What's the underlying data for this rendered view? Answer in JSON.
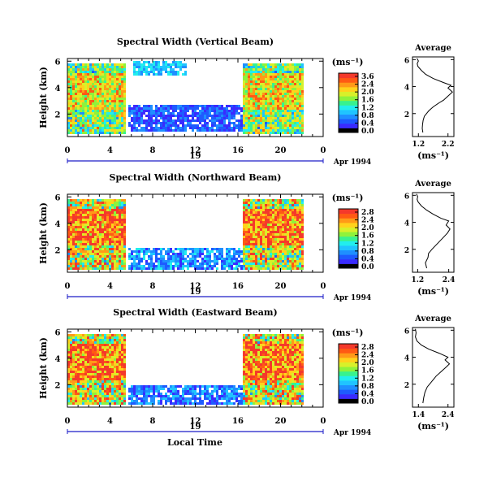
{
  "colors": {
    "colormap": [
      "#000000",
      "#3a2bff",
      "#1e5bff",
      "#1f8fff",
      "#20c4ff",
      "#22eeee",
      "#38f28f",
      "#8ff23b",
      "#d8f02a",
      "#ffd21c",
      "#ff9a18",
      "#ff5a14",
      "#f4392b"
    ],
    "background": "#ffffff",
    "axis": "#000000",
    "date_axis": "#1c1cc8"
  },
  "shared": {
    "ylabel": "Height (km)",
    "x_ticks": [
      "0",
      "4",
      "8",
      "12",
      "16",
      "20",
      "0"
    ],
    "day_label": "19",
    "date_label": "Apr 1994",
    "xlabel": "Local Time",
    "colorbar_unit": "(ms⁻¹)",
    "profile_title": "Average",
    "profile_unit": "(ms⁻¹)"
  },
  "panels": [
    {
      "title": "Spectral Width (Vertical Beam)",
      "y_ticks": [
        "6",
        "4",
        "2"
      ],
      "colorbar_ticks": [
        "3.6",
        "2.4",
        "2.0",
        "1.6",
        "1.2",
        "0.8",
        "0.4",
        "0.0"
      ],
      "profile_x_ticks": [
        "1.2",
        "2.2"
      ],
      "profile_y_ticks": [
        "6",
        "4",
        "2"
      ]
    },
    {
      "title": "Spectral Width (Northward Beam)",
      "y_ticks": [
        "6",
        "4",
        "2"
      ],
      "colorbar_ticks": [
        "2.8",
        "2.4",
        "2.0",
        "1.6",
        "1.2",
        "0.8",
        "0.4",
        "0.0"
      ],
      "profile_x_ticks": [
        "1.2",
        "2.4"
      ],
      "profile_y_ticks": [
        "6",
        "4",
        "2"
      ]
    },
    {
      "title": "Spectral Width (Eastward Beam)",
      "y_ticks": [
        "6",
        "4",
        "2"
      ],
      "colorbar_ticks": [
        "2.8",
        "2.4",
        "2.0",
        "1.6",
        "1.2",
        "0.8",
        "0.4",
        "0.0"
      ],
      "profile_x_ticks": [
        "1.4",
        "2.4"
      ],
      "profile_y_ticks": [
        "6",
        "4",
        "2"
      ]
    }
  ],
  "chart_data": [
    {
      "type": "heatmap",
      "title": "Spectral Width (Vertical Beam)",
      "xlabel": "",
      "ylabel": "Height (km)",
      "xlim": [
        0,
        24
      ],
      "ylim": [
        0.3,
        6.2
      ],
      "x_ticks": [
        0,
        4,
        8,
        12,
        16,
        20,
        24
      ],
      "y_ticks": [
        6,
        4,
        2
      ],
      "colorbar": {
        "label": "(ms⁻¹)",
        "ticks": [
          3.6,
          2.4,
          2.0,
          1.6,
          1.2,
          0.8,
          0.4,
          0.0
        ]
      },
      "features": [
        {
          "hours": [
            0,
            5.3
          ],
          "heights_km": [
            0.5,
            5.9
          ],
          "value_ms": 2.6,
          "note": ""
        },
        {
          "hours": [
            6,
            11
          ],
          "heights_km": [
            5.0,
            6.1
          ],
          "value_ms": 1.2,
          "note": ""
        },
        {
          "hours": [
            16.3,
            22
          ],
          "heights_km": [
            0.5,
            5.9
          ],
          "value_ms": 2.6,
          "note": ""
        },
        {
          "hours": [
            5.5,
            16.5
          ],
          "heights_km": [
            0.8,
            2.8
          ],
          "value_ms": 0.6,
          "note": ""
        }
      ]
    },
    {
      "type": "line",
      "title": "Average",
      "xlabel": "(ms⁻¹)",
      "ylabel": "",
      "xlim": [
        1.0,
        2.4
      ],
      "ylim": [
        0.3,
        6.2
      ],
      "x_ticks": [
        1.2,
        2.2
      ],
      "y_ticks": [
        6,
        4,
        2
      ],
      "series": [
        {
          "x": [
            1.35,
            1.33,
            1.34,
            1.36,
            1.4,
            1.55,
            1.7,
            1.9,
            2.05,
            2.2,
            2.35,
            2.2,
            2.3,
            2.05,
            1.7,
            1.45,
            1.3,
            1.18,
            1.16,
            1.2,
            1.15
          ],
          "y": [
            0.6,
            0.9,
            1.2,
            1.5,
            1.8,
            2.2,
            2.5,
            2.8,
            3.0,
            3.3,
            3.6,
            3.9,
            4.1,
            4.3,
            4.6,
            4.9,
            5.2,
            5.5,
            5.7,
            5.9,
            6.1
          ]
        }
      ]
    },
    {
      "type": "heatmap",
      "title": "Spectral Width (Northward Beam)",
      "xlabel": "",
      "ylabel": "Height (km)",
      "xlim": [
        0,
        24
      ],
      "ylim": [
        0.3,
        6.2
      ],
      "x_ticks": [
        0,
        4,
        8,
        12,
        16,
        20,
        24
      ],
      "y_ticks": [
        6,
        4,
        2
      ],
      "colorbar": {
        "label": "(ms⁻¹)",
        "ticks": [
          2.8,
          2.4,
          2.0,
          1.6,
          1.2,
          0.8,
          0.4,
          0.0
        ]
      },
      "features": [
        {
          "hours": [
            0,
            5.3
          ],
          "heights_km": [
            0.5,
            5.9
          ],
          "value_ms": 2.5,
          "note": ""
        },
        {
          "hours": [
            16.3,
            22
          ],
          "heights_km": [
            0.5,
            5.9
          ],
          "value_ms": 2.5,
          "note": ""
        },
        {
          "hours": [
            5.5,
            16.5
          ],
          "heights_km": [
            0.6,
            2.2
          ],
          "value_ms": 0.7,
          "note": ""
        }
      ]
    },
    {
      "type": "line",
      "title": "Average",
      "xlabel": "(ms⁻¹)",
      "ylabel": "",
      "xlim": [
        1.0,
        2.6
      ],
      "ylim": [
        0.3,
        6.2
      ],
      "x_ticks": [
        1.2,
        2.4
      ],
      "y_ticks": [
        6,
        4,
        2
      ],
      "series": [
        {
          "x": [
            1.55,
            1.5,
            1.6,
            1.62,
            1.75,
            1.9,
            2.05,
            2.2,
            2.35,
            2.45,
            2.3,
            2.4,
            2.1,
            1.8,
            1.55,
            1.35,
            1.22,
            1.18,
            1.2,
            1.15
          ],
          "y": [
            0.6,
            1.0,
            1.4,
            1.7,
            2.0,
            2.3,
            2.6,
            2.9,
            3.2,
            3.5,
            3.8,
            4.1,
            4.3,
            4.6,
            4.9,
            5.2,
            5.5,
            5.7,
            5.9,
            6.1
          ]
        }
      ]
    },
    {
      "type": "heatmap",
      "title": "Spectral Width (Eastward Beam)",
      "xlabel": "Local Time",
      "ylabel": "Height (km)",
      "xlim": [
        0,
        24
      ],
      "ylim": [
        0.3,
        6.2
      ],
      "x_ticks": [
        0,
        4,
        8,
        12,
        16,
        20,
        24
      ],
      "y_ticks": [
        6,
        4,
        2
      ],
      "colorbar": {
        "label": "(ms⁻¹)",
        "ticks": [
          2.8,
          2.4,
          2.0,
          1.6,
          1.2,
          0.8,
          0.4,
          0.0
        ]
      },
      "features": [
        {
          "hours": [
            0,
            5.3
          ],
          "heights_km": [
            0.5,
            5.9
          ],
          "value_ms": 2.5,
          "note": ""
        },
        {
          "hours": [
            16.3,
            22
          ],
          "heights_km": [
            0.5,
            5.9
          ],
          "value_ms": 2.5,
          "note": ""
        },
        {
          "hours": [
            5.5,
            16.5
          ],
          "heights_km": [
            0.5,
            2.0
          ],
          "value_ms": 0.6,
          "note": ""
        }
      ]
    },
    {
      "type": "line",
      "title": "Average",
      "xlabel": "(ms⁻¹)",
      "ylabel": "",
      "xlim": [
        1.2,
        2.6
      ],
      "ylim": [
        0.3,
        6.2
      ],
      "x_ticks": [
        1.4,
        2.4
      ],
      "y_ticks": [
        6,
        4,
        2
      ],
      "series": [
        {
          "x": [
            1.55,
            1.58,
            1.62,
            1.7,
            1.85,
            2.0,
            2.2,
            2.35,
            2.45,
            2.3,
            2.4,
            2.1,
            1.75,
            1.5,
            1.35,
            1.3,
            1.32,
            1.3
          ],
          "y": [
            0.6,
            1.0,
            1.4,
            1.8,
            2.2,
            2.6,
            3.0,
            3.3,
            3.5,
            3.8,
            4.0,
            4.3,
            4.6,
            4.9,
            5.2,
            5.5,
            5.8,
            6.1
          ]
        }
      ]
    }
  ]
}
